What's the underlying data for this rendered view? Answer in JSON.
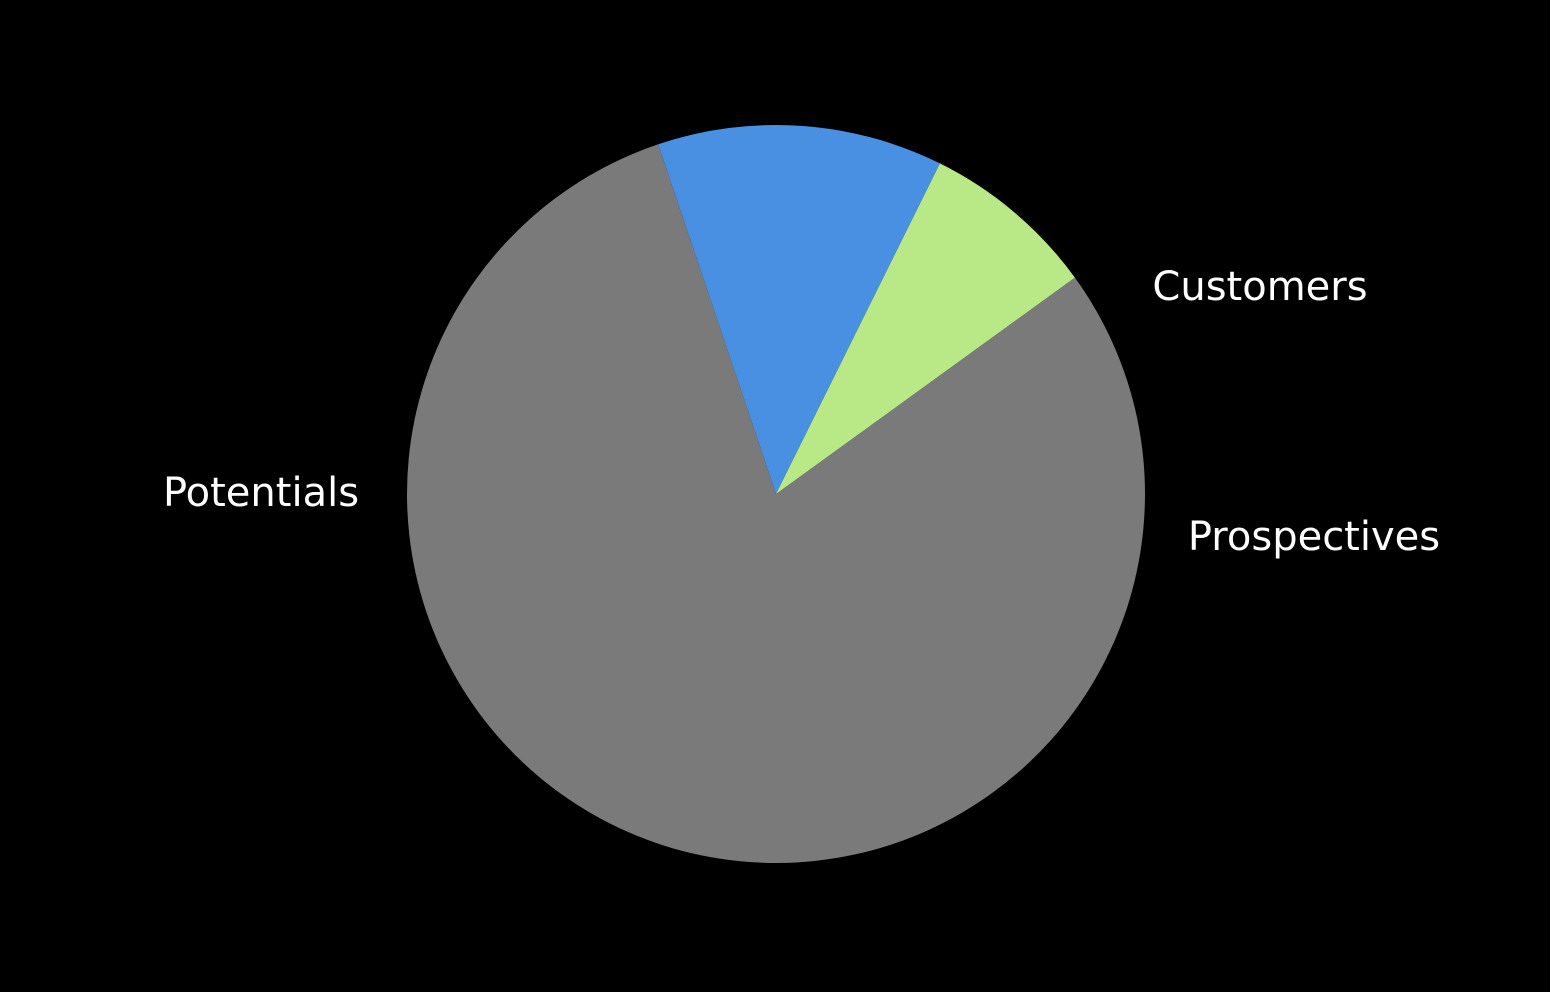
{
  "chart_data": {
    "type": "pie",
    "background_color": "#000000",
    "label_color": "#ffffff",
    "labels_on_chart": true,
    "legend": "none",
    "slices": [
      {
        "label": "Potentials",
        "value": 79.8,
        "color": "#7a7a7a"
      },
      {
        "label": "Prospectives",
        "value": 12.5,
        "color": "#4a90e2"
      },
      {
        "label": "Customers",
        "value": 7.7,
        "color": "#b8e986"
      }
    ]
  }
}
